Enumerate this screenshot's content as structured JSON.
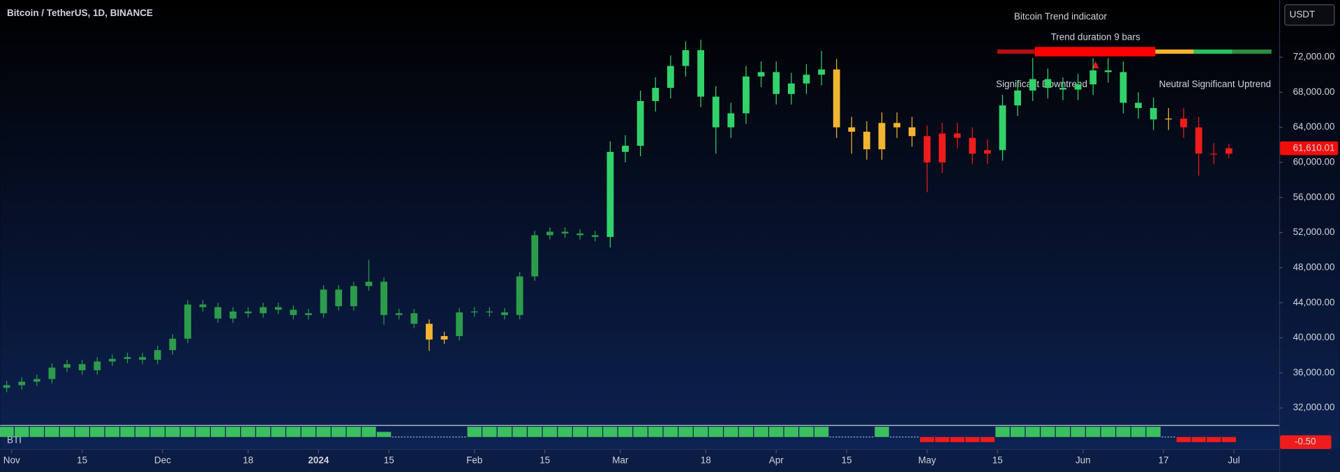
{
  "chart_data": {
    "type": "candlestick",
    "title": "Bitcoin / TetherUS, 1D, BINANCE",
    "currency": "USDT",
    "x": [
      -1,
      2,
      5,
      8,
      11,
      14,
      17,
      20,
      23,
      26,
      29,
      32,
      35,
      38,
      41,
      44,
      47,
      50,
      53,
      56,
      59,
      62,
      65,
      68,
      71,
      74,
      77,
      80,
      83,
      86,
      89,
      92,
      95,
      98,
      101,
      104,
      107,
      110,
      113,
      116,
      119,
      122,
      125,
      128,
      131,
      134,
      137,
      140,
      143,
      146,
      149,
      152,
      155,
      158,
      161,
      164,
      167,
      170,
      173,
      176,
      179,
      182,
      185,
      188,
      191,
      194,
      197,
      200,
      203,
      206,
      209,
      212,
      215,
      218,
      221,
      224,
      227,
      230,
      233,
      236,
      239,
      242
    ],
    "open": [
      34300,
      34600,
      35000,
      35300,
      36600,
      37000,
      36300,
      37300,
      37600,
      37800,
      37500,
      38600,
      39900,
      43800,
      43500,
      42200,
      43000,
      42800,
      43500,
      43200,
      42600,
      42800,
      45500,
      43600,
      45900,
      46400,
      42600,
      42800,
      41600,
      39800,
      40200,
      42900,
      43000,
      42900,
      42600,
      47000,
      51700,
      52100,
      51900,
      51700,
      51500,
      61200,
      61900,
      67000,
      68500,
      71000,
      72800,
      67500,
      64000,
      65600,
      69800,
      70300,
      67800,
      69000,
      70000,
      70600,
      64000,
      63500,
      61500,
      64500,
      64000,
      63000,
      60000,
      63300,
      62800,
      61000,
      61400,
      66500,
      68200,
      69500,
      68500,
      68300,
      68900,
      70500,
      70300,
      66800,
      66200,
      64900,
      65000,
      64000,
      61000,
      61000
    ],
    "high": [
      35100,
      35500,
      35800,
      37100,
      37500,
      37500,
      37800,
      38100,
      38300,
      38300,
      39100,
      40400,
      44300,
      44300,
      44000,
      43500,
      43500,
      44000,
      44000,
      43700,
      43300,
      46000,
      46000,
      46400,
      48900,
      46900,
      43300,
      43300,
      42100,
      40700,
      43400,
      43500,
      43500,
      43400,
      47500,
      52200,
      52600,
      52600,
      52400,
      52200,
      62400,
      63100,
      68200,
      69700,
      72200,
      73800,
      74000,
      68700,
      66800,
      71000,
      71500,
      71500,
      70200,
      71200,
      72700,
      71800,
      65200,
      64700,
      65700,
      65700,
      65200,
      64200,
      64500,
      64500,
      64000,
      62600,
      67700,
      69400,
      71900,
      70700,
      69700,
      70100,
      71900,
      71900,
      71500,
      68000,
      67400,
      66200,
      66200,
      65200,
      62200,
      62100
    ],
    "low": [
      33800,
      34100,
      34500,
      34800,
      36100,
      35800,
      35800,
      36800,
      37100,
      37000,
      37000,
      38100,
      39400,
      43000,
      41700,
      41700,
      42300,
      42300,
      42700,
      42100,
      42100,
      42300,
      43100,
      43100,
      45400,
      41500,
      42100,
      41100,
      38500,
      39300,
      39700,
      42400,
      42400,
      42100,
      42100,
      46500,
      51200,
      51400,
      51200,
      51000,
      50300,
      60000,
      60700,
      65800,
      67300,
      69800,
      66300,
      61000,
      62800,
      64400,
      68600,
      66600,
      66600,
      67800,
      68800,
      62800,
      61000,
      60300,
      60300,
      62800,
      61800,
      56600,
      58800,
      61600,
      59800,
      59800,
      60200,
      65300,
      67000,
      67300,
      67100,
      67100,
      67700,
      69100,
      65600,
      65000,
      63700,
      63700,
      62800,
      58500,
      59800,
      60500
    ],
    "close": [
      34600,
      35000,
      35300,
      36600,
      37000,
      36300,
      37300,
      37600,
      37800,
      37500,
      38600,
      39900,
      43800,
      43500,
      42200,
      43000,
      42800,
      43500,
      43200,
      42600,
      42800,
      45500,
      43600,
      45900,
      46400,
      42600,
      42800,
      41600,
      39800,
      40200,
      42900,
      43000,
      42900,
      42600,
      47000,
      51700,
      52100,
      51900,
      51700,
      51500,
      61200,
      61900,
      67000,
      68500,
      71000,
      72800,
      67500,
      64000,
      65600,
      69800,
      70300,
      67800,
      69000,
      70000,
      70600,
      64000,
      63500,
      61500,
      64500,
      64000,
      63000,
      60000,
      63300,
      62800,
      61000,
      61400,
      66500,
      68200,
      69500,
      68500,
      68300,
      68900,
      70500,
      70300,
      66800,
      66200,
      64900,
      65000,
      64000,
      61000,
      61000,
      61610.01
    ],
    "colors": [
      "#2c9c4a",
      "#2c9c4a",
      "#2c9c4a",
      "#2c9c4a",
      "#2c9c4a",
      "#2c9c4a",
      "#2c9c4a",
      "#2c9c4a",
      "#2c9c4a",
      "#2c9c4a",
      "#2c9c4a",
      "#2c9c4a",
      "#2c9c4a",
      "#2c9c4a",
      "#2c9c4a",
      "#2c9c4a",
      "#2c9c4a",
      "#2c9c4a",
      "#2c9c4a",
      "#2c9c4a",
      "#2c9c4a",
      "#2c9c4a",
      "#2c9c4a",
      "#2c9c4a",
      "#2c9c4a",
      "#2c9c4a",
      "#2c9c4a",
      "#2c9c4a",
      "#f2b531",
      "#f2b531",
      "#2c9c4a",
      "#2c9c4a",
      "#2c9c4a",
      "#2c9c4a",
      "#2c9c4a",
      "#2c9c4a",
      "#2c9c4a",
      "#2c9c4a",
      "#2c9c4a",
      "#2c9c4a",
      "#32d26a",
      "#32d26a",
      "#32d26a",
      "#32d26a",
      "#32d26a",
      "#32d26a",
      "#32d26a",
      "#32d26a",
      "#32d26a",
      "#32d26a",
      "#32d26a",
      "#32d26a",
      "#32d26a",
      "#32d26a",
      "#32d26a",
      "#f2b531",
      "#f2b531",
      "#f2b531",
      "#f2b531",
      "#f2b531",
      "#f2b531",
      "#ee1c1c",
      "#ee1c1c",
      "#ee1c1c",
      "#ee1c1c",
      "#ee1c1c",
      "#32d26a",
      "#32d26a",
      "#32d26a",
      "#32d26a",
      "#32d26a",
      "#32d26a",
      "#32d26a",
      "#32d26a",
      "#32d26a",
      "#32d26a",
      "#32d26a",
      "#f2b531",
      "#ee1c1c",
      "#ee1c1c",
      "#ee1c1c",
      "#ee1c1c"
    ],
    "last_close_label": "61,610.01",
    "last_close_color": "#f20d0d",
    "xlim": [
      -2.3,
      252
    ],
    "xticks": [
      {
        "value": 0,
        "label": "Nov"
      },
      {
        "value": 14,
        "label": "15"
      },
      {
        "value": 30,
        "label": "Dec"
      },
      {
        "value": 47,
        "label": "18"
      },
      {
        "value": 61,
        "label": "2024"
      },
      {
        "value": 75,
        "label": "15"
      },
      {
        "value": 92,
        "label": "Feb"
      },
      {
        "value": 106,
        "label": "15"
      },
      {
        "value": 121,
        "label": "Mar"
      },
      {
        "value": 138,
        "label": "18"
      },
      {
        "value": 152,
        "label": "Apr"
      },
      {
        "value": 166,
        "label": "15"
      },
      {
        "value": 182,
        "label": "May"
      },
      {
        "value": 196,
        "label": "15"
      },
      {
        "value": 213,
        "label": "Jun"
      },
      {
        "value": 229,
        "label": "17"
      },
      {
        "value": 243,
        "label": "Jul"
      }
    ],
    "ylim": [
      30150,
      78520
    ],
    "yticks": [
      {
        "value": 32000,
        "label": "32,000.00"
      },
      {
        "value": 36000,
        "label": "36,000.00"
      },
      {
        "value": 40000,
        "label": "40,000.00"
      },
      {
        "value": 44000,
        "label": "44,000.00"
      },
      {
        "value": 48000,
        "label": "48,000.00"
      },
      {
        "value": 52000,
        "label": "52,000.00"
      },
      {
        "value": 56000,
        "label": "56,000.00"
      },
      {
        "value": 60000,
        "label": "60,000.00"
      },
      {
        "value": 64000,
        "label": "64,000.00"
      },
      {
        "value": 68000,
        "label": "68,000.00"
      },
      {
        "value": 72000,
        "label": "72,000.00"
      }
    ],
    "grid": false,
    "indicator": {
      "type": "bar",
      "name": "BTI",
      "values": [
        1,
        1,
        1,
        1,
        1,
        1,
        1,
        1,
        1,
        1,
        1,
        1,
        1,
        1,
        1,
        1,
        1,
        1,
        1,
        1,
        1,
        1,
        1,
        1,
        1,
        0.5,
        0,
        0,
        0,
        0,
        0,
        1,
        1,
        1,
        1,
        1,
        1,
        1,
        1,
        1,
        1,
        1,
        1,
        1,
        1,
        1,
        1,
        1,
        1,
        1,
        1,
        1,
        1,
        1,
        1,
        0,
        0,
        0,
        1,
        0,
        0,
        -0.5,
        -0.5,
        -0.5,
        -0.5,
        -0.5,
        1,
        1,
        1,
        1,
        1,
        1,
        1,
        1,
        1,
        1,
        1,
        0,
        -0.5,
        -0.5,
        -0.5,
        -0.5
      ],
      "ylim": [
        -1,
        1
      ],
      "up_color": "#3cbf5f",
      "down_color": "#ee1c1c",
      "neutral_color": "#aeb3c2",
      "last_value_label": "-0.50"
    },
    "trend_panel": {
      "title": "Bitcoin Trend indicator",
      "duration_text": "Trend duration 9 bars",
      "scale_colors": [
        "#b50f12",
        "#ff0000",
        "#f2b531",
        "#22c55e",
        "#2e8b3e"
      ],
      "active_segment": 1,
      "labels": [
        "Significant Downtrend",
        "Neutral",
        "Significant Uptrend"
      ]
    }
  }
}
